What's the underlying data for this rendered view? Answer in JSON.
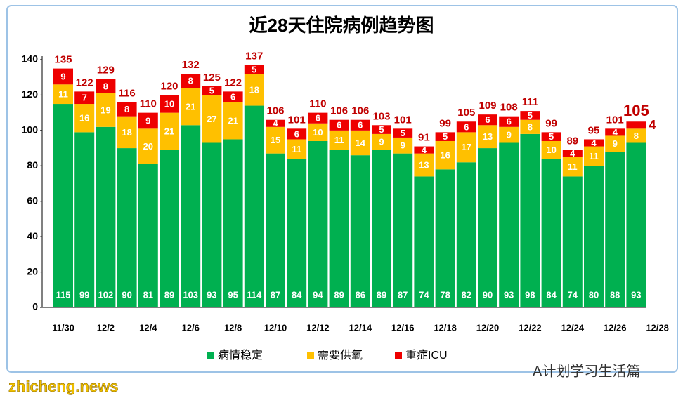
{
  "chart_data": {
    "type": "stacked_bar",
    "title": "近28天住院病例趋势图",
    "categories": [
      "11/30",
      null,
      "12/2",
      null,
      "12/4",
      null,
      "12/6",
      null,
      "12/8",
      null,
      "12/10",
      null,
      "12/12",
      null,
      "12/14",
      null,
      "12/16",
      null,
      "12/18",
      null,
      "12/20",
      null,
      "12/22",
      null,
      "12/24",
      null,
      "12/26",
      null,
      "12/28"
    ],
    "series": [
      {
        "name": "病情稳定",
        "color": "#00b050",
        "values": [
          115,
          99,
          102,
          90,
          81,
          89,
          103,
          93,
          95,
          114,
          87,
          84,
          94,
          89,
          86,
          89,
          87,
          74,
          78,
          82,
          90,
          93,
          98,
          84,
          74,
          80,
          88,
          93,
          null
        ]
      },
      {
        "name": "需要供氧",
        "color": "#ffc000",
        "values": [
          11,
          16,
          19,
          18,
          20,
          21,
          21,
          27,
          21,
          18,
          15,
          11,
          10,
          11,
          14,
          9,
          9,
          13,
          16,
          17,
          13,
          9,
          8,
          10,
          11,
          11,
          9,
          8,
          null
        ]
      },
      {
        "name": "重症ICU",
        "color": "#ee0000",
        "values": [
          9,
          7,
          8,
          8,
          9,
          10,
          8,
          5,
          6,
          5,
          4,
          6,
          6,
          6,
          6,
          5,
          5,
          4,
          5,
          6,
          6,
          6,
          5,
          5,
          4,
          4,
          4,
          4,
          null
        ]
      }
    ],
    "totals": [
      135,
      122,
      129,
      116,
      110,
      120,
      132,
      125,
      122,
      137,
      106,
      101,
      110,
      106,
      106,
      103,
      101,
      91,
      99,
      105,
      109,
      108,
      111,
      99,
      89,
      95,
      101,
      105,
      null
    ],
    "ylim": [
      0,
      140
    ],
    "yticks": [
      0,
      20,
      40,
      60,
      80,
      100,
      120,
      140
    ],
    "legend": "bottom",
    "watermarks": [
      "zhicheng.news",
      "A计划学习生活篇"
    ]
  }
}
